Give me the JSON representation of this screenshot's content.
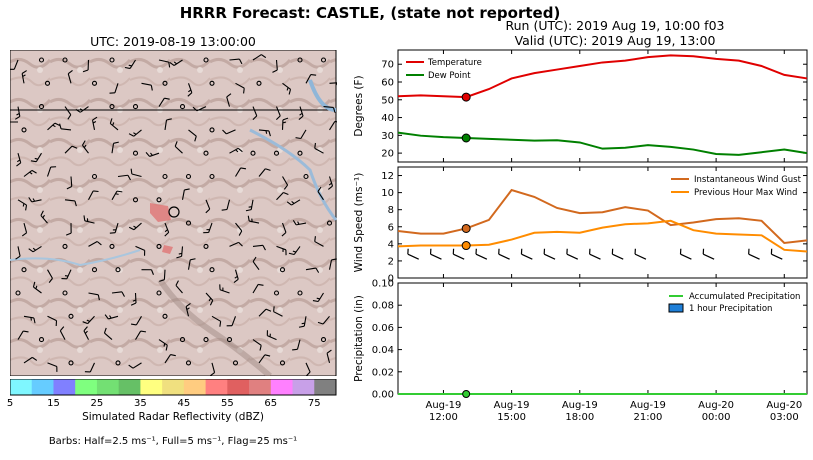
{
  "header": {
    "title": "HRRR Forecast: CASTLE, (state not reported)",
    "run": "Run (UTC): 2019 Aug 19, 10:00 f03",
    "valid": "Valid (UTC): 2019 Aug 19, 13:00"
  },
  "map": {
    "time_label": "UTC: 2019-08-19 13:00:00"
  },
  "colorbar": {
    "ticks": [
      "5",
      "15",
      "25",
      "35",
      "45",
      "55",
      "65",
      "75"
    ],
    "label": "Simulated Radar Reflectivity (dBZ)",
    "colors": [
      "#7ff7ff",
      "#66ccff",
      "#8080ff",
      "#7fff7f",
      "#73e073",
      "#66c066",
      "#ffff80",
      "#f0e07f",
      "#ffcc80",
      "#ff8080",
      "#e06060",
      "#e08080",
      "#ff80ff",
      "#c8a0e8",
      "#808080"
    ]
  },
  "barbs_note": "Barbs: Half=2.5 ms⁻¹, Full=5 ms⁻¹, Flag=25 ms⁻¹",
  "chart_data": [
    {
      "type": "line",
      "ylabel": "Degrees (F)",
      "ylim": [
        15,
        78
      ],
      "yticks": [
        "20",
        "30",
        "40",
        "50",
        "60",
        "70"
      ],
      "legend_placement": "top-left",
      "x": [
        "2019-08-19 10:00",
        "11:00",
        "12:00",
        "13:00",
        "14:00",
        "15:00",
        "16:00",
        "17:00",
        "18:00",
        "19:00",
        "20:00",
        "21:00",
        "22:00",
        "23:00",
        "2019-08-20 00:00",
        "01:00",
        "02:00",
        "03:00",
        "04:00"
      ],
      "series": [
        {
          "name": "Temperature",
          "color": "#e00000",
          "values": [
            52,
            52.5,
            52,
            51.5,
            56,
            62,
            65,
            67,
            69,
            71,
            72,
            74,
            75,
            74.5,
            73,
            72,
            69,
            64,
            62
          ]
        },
        {
          "name": "Dew Point",
          "color": "#008000",
          "values": [
            31.5,
            29.8,
            29,
            28.5,
            28,
            27.5,
            27,
            27.2,
            26,
            22.5,
            23,
            24.5,
            23.5,
            22,
            19.5,
            19,
            20.5,
            22,
            20
          ]
        }
      ],
      "marker_index": 3
    },
    {
      "type": "line",
      "ylabel": "Wind Speed (ms⁻¹)",
      "ylim": [
        0,
        13
      ],
      "yticks": [
        "0",
        "2",
        "4",
        "6",
        "8",
        "10",
        "12"
      ],
      "legend_placement": "top-right",
      "series": [
        {
          "name": "Instantaneous Wind Gust",
          "color": "#d2691e",
          "values": [
            5.5,
            5.2,
            5.2,
            5.8,
            6.8,
            10.3,
            9.5,
            8.2,
            7.6,
            7.7,
            8.3,
            7.9,
            6.2,
            6.5,
            6.9,
            7.0,
            6.7,
            4.1,
            4.4
          ]
        },
        {
          "name": "Previous Hour Max Wind",
          "color": "#ff8c00",
          "values": [
            3.7,
            3.8,
            3.8,
            3.8,
            3.9,
            4.5,
            5.3,
            5.4,
            5.3,
            5.9,
            6.3,
            6.4,
            6.7,
            5.6,
            5.2,
            5.1,
            5.0,
            3.3,
            3.1
          ]
        }
      ],
      "marker_index": 3
    },
    {
      "type": "bar",
      "ylabel": "Precipitation (in)",
      "ylim": [
        0,
        0.1
      ],
      "yticks": [
        "0.00",
        "0.02",
        "0.04",
        "0.06",
        "0.08",
        "0.10"
      ],
      "legend_placement": "top-right",
      "series": [
        {
          "name": "Accumulated Precipitation",
          "color": "#33cc33",
          "values": [
            0,
            0,
            0,
            0,
            0,
            0,
            0,
            0,
            0,
            0,
            0,
            0,
            0,
            0,
            0,
            0,
            0,
            0,
            0
          ]
        },
        {
          "name": "1 hour Precipitation",
          "color": "#1e7fd8",
          "values": [
            0,
            0,
            0,
            0,
            0,
            0,
            0,
            0,
            0,
            0,
            0,
            0,
            0,
            0,
            0,
            0,
            0,
            0,
            0
          ]
        }
      ],
      "marker_index": 3,
      "xticks": [
        {
          "line1": "Aug-19",
          "line2": "12:00"
        },
        {
          "line1": "Aug-19",
          "line2": "15:00"
        },
        {
          "line1": "Aug-19",
          "line2": "18:00"
        },
        {
          "line1": "Aug-19",
          "line2": "21:00"
        },
        {
          "line1": "Aug-20",
          "line2": "00:00"
        },
        {
          "line1": "Aug-20",
          "line2": "03:00"
        }
      ]
    }
  ]
}
